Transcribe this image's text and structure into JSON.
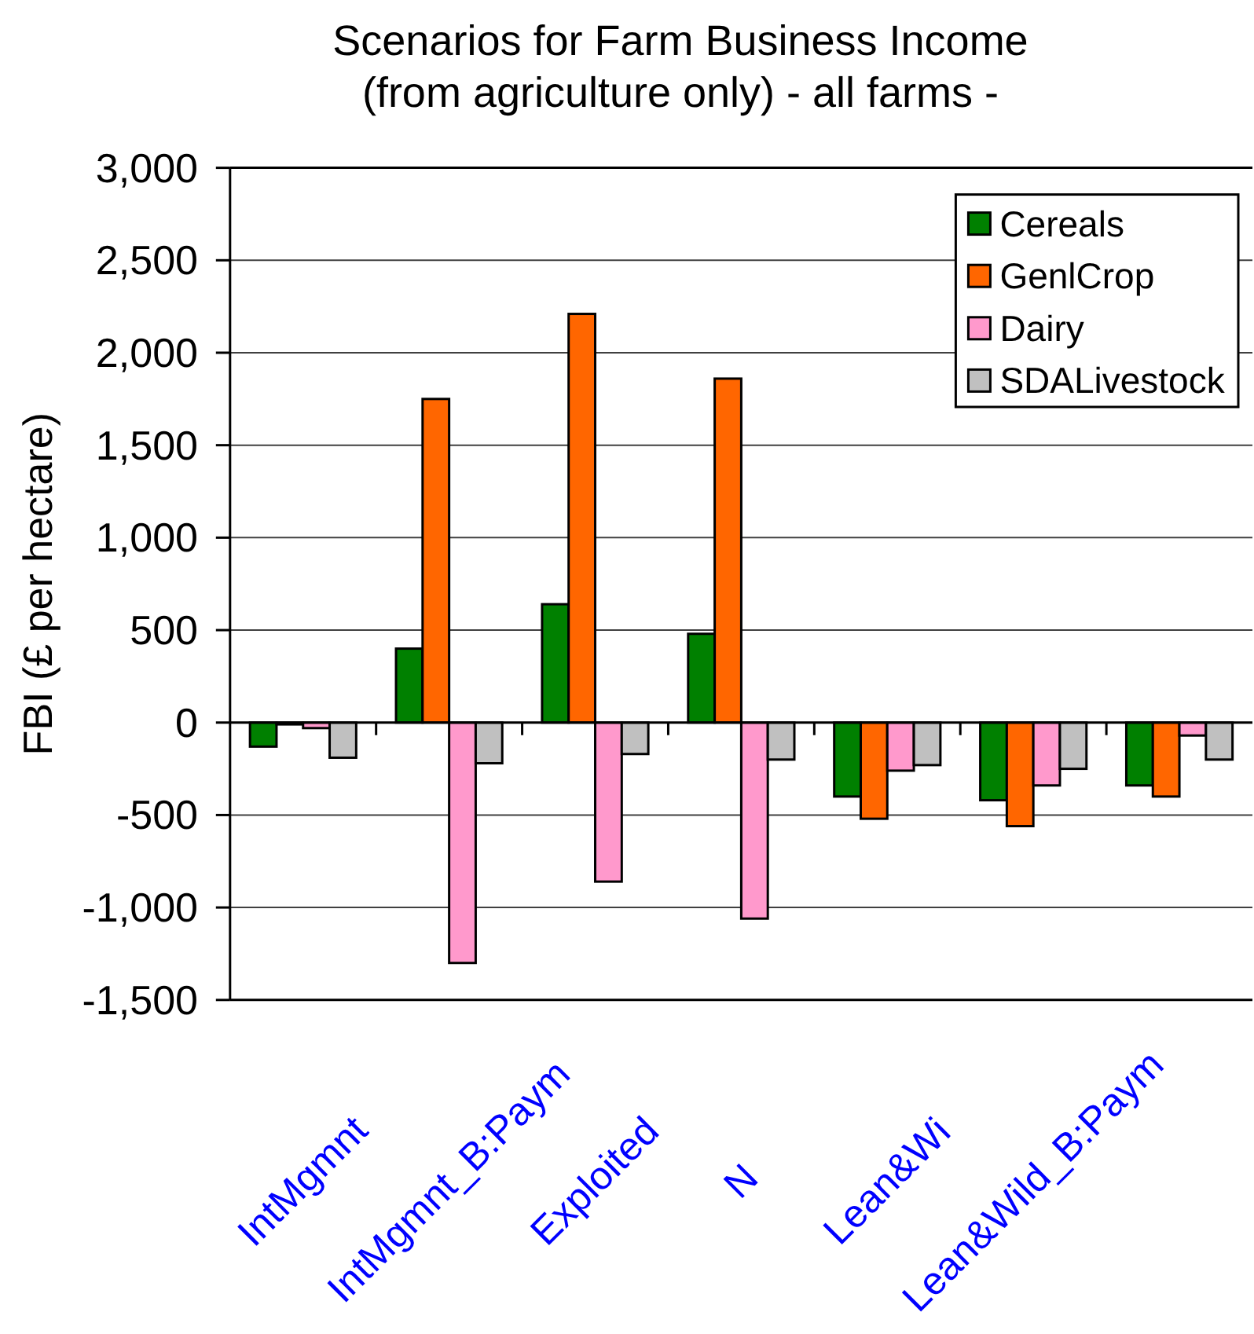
{
  "chart_data": {
    "type": "bar",
    "title": "Scenarios for Farm Business Income",
    "subtitle": "(from agriculture only) - all farms -",
    "ylabel": "FBI (£ per hectare)",
    "categories": [
      "IntMgmnt",
      "IntMgmnt_B:Paym",
      "Exploited",
      "N",
      "Lean&Wi",
      "Lean&Wild_B:Paym",
      null
    ],
    "series": [
      {
        "name": "Cereals",
        "color": "#008000",
        "values": [
          -130,
          400,
          640,
          480,
          -400,
          -420,
          -340
        ]
      },
      {
        "name": "GenlCrop",
        "color": "#ff6600",
        "values": [
          -10,
          1750,
          2210,
          1860,
          -520,
          -560,
          -400
        ]
      },
      {
        "name": "Dairy",
        "color": "#ff99cc",
        "values": [
          -30,
          -1300,
          -860,
          -1060,
          -260,
          -340,
          -70
        ]
      },
      {
        "name": "SDALivestock",
        "color": "#c0c0c0",
        "values": [
          -190,
          -220,
          -170,
          -200,
          -230,
          -250,
          -200
        ]
      }
    ],
    "ylim": [
      -1500,
      3000
    ],
    "yticks": [
      {
        "value": -1500,
        "label": "-1,500"
      },
      {
        "value": -1000,
        "label": "-1,000"
      },
      -500,
      0,
      500,
      {
        "value": 1000,
        "label": "1,000"
      },
      {
        "value": 1500,
        "label": "1,500"
      },
      {
        "value": 2000,
        "label": "2,000"
      },
      {
        "value": 2500,
        "label": "2,500"
      },
      {
        "value": 3000,
        "label": "3,000"
      }
    ],
    "grid": "y",
    "legend": "top right"
  }
}
